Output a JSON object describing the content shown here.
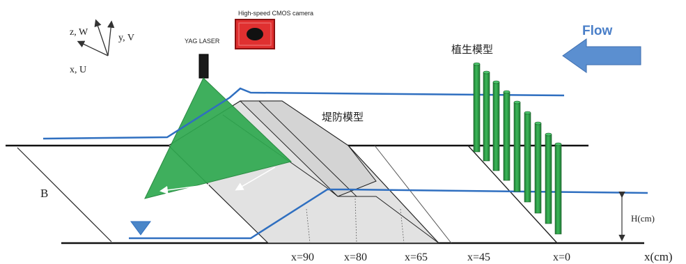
{
  "axes_labels": {
    "w": "z, W",
    "v": "y, V",
    "u": "x, U"
  },
  "laser_label": "YAG LASER",
  "camera_label": "High-speed CMOS camera",
  "flow_label": "Flow",
  "vegetation_label": "植生模型",
  "levee_label": "堤防模型",
  "width_label": "B",
  "height_label": "H(cm)",
  "x_axis_label": "x(cm)",
  "stations": [
    "x=90",
    "x=80",
    "x=65",
    "x=45",
    "x=0"
  ],
  "colors": {
    "water_line": "#2f6fc0",
    "laser_sheet": "#2fa84f",
    "vegetation": "#2e9e45",
    "flow_arrow": "#5b8fd0",
    "camera": "#e03030",
    "levee_fill": "#e2e2e2",
    "water_marker": "#4a86c8"
  }
}
